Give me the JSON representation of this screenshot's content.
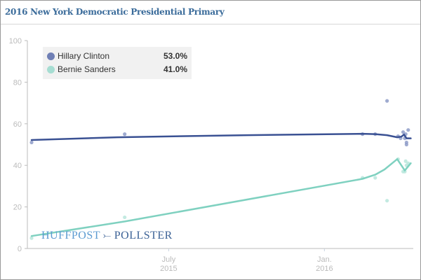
{
  "chart_data": {
    "type": "line",
    "title": "2016 New York Democratic Presidential Primary",
    "xlabel": "",
    "ylabel": "",
    "ylim": [
      0,
      100
    ],
    "yticks": [
      0,
      20,
      40,
      60,
      80,
      100
    ],
    "xlim": [
      "2015-01-15",
      "2016-04-15"
    ],
    "xticks": [
      {
        "date": "2015-07-01",
        "line1": "July",
        "line2": "2015"
      },
      {
        "date": "2016-01-01",
        "line1": "Jan.",
        "line2": "2016"
      }
    ],
    "grid": false,
    "legend_position": "top-left",
    "series": [
      {
        "name": "Hillary Clinton",
        "latest": "53.0%",
        "color": "#3a5193",
        "dot_color": "#8e9cc8",
        "trend": [
          {
            "date": "2015-01-20",
            "value": 52.2
          },
          {
            "date": "2015-05-01",
            "value": 53.5
          },
          {
            "date": "2015-10-01",
            "value": 54.5
          },
          {
            "date": "2016-02-15",
            "value": 55.2
          },
          {
            "date": "2016-03-01",
            "value": 55.0
          },
          {
            "date": "2016-03-15",
            "value": 54.5
          },
          {
            "date": "2016-03-27",
            "value": 53.5
          },
          {
            "date": "2016-04-01",
            "value": 53.8
          },
          {
            "date": "2016-04-04",
            "value": 54.8
          },
          {
            "date": "2016-04-07",
            "value": 53.0
          },
          {
            "date": "2016-04-12",
            "value": 53.0
          }
        ],
        "polls": [
          {
            "date": "2015-01-20",
            "value": 51
          },
          {
            "date": "2015-05-10",
            "value": 55
          },
          {
            "date": "2016-02-15",
            "value": 55
          },
          {
            "date": "2016-03-01",
            "value": 55
          },
          {
            "date": "2016-03-15",
            "value": 71
          },
          {
            "date": "2016-03-28",
            "value": 54
          },
          {
            "date": "2016-03-31",
            "value": 53
          },
          {
            "date": "2016-04-03",
            "value": 56
          },
          {
            "date": "2016-04-05",
            "value": 53
          },
          {
            "date": "2016-04-06",
            "value": 55
          },
          {
            "date": "2016-04-07",
            "value": 51
          },
          {
            "date": "2016-04-07",
            "value": 50
          },
          {
            "date": "2016-04-09",
            "value": 57
          }
        ]
      },
      {
        "name": "Bernie Sanders",
        "latest": "41.0%",
        "color": "#7fd1c0",
        "dot_color": "#b8e6dc",
        "trend": [
          {
            "date": "2015-01-20",
            "value": 6.0
          },
          {
            "date": "2015-05-10",
            "value": 13.0
          },
          {
            "date": "2016-02-15",
            "value": 33.5
          },
          {
            "date": "2016-03-01",
            "value": 35.5
          },
          {
            "date": "2016-03-12",
            "value": 38.0
          },
          {
            "date": "2016-03-27",
            "value": 43.0
          },
          {
            "date": "2016-04-05",
            "value": 37.5
          },
          {
            "date": "2016-04-12",
            "value": 41.0
          }
        ],
        "polls": [
          {
            "date": "2015-01-20",
            "value": 5
          },
          {
            "date": "2015-05-10",
            "value": 15
          },
          {
            "date": "2016-02-15",
            "value": 34
          },
          {
            "date": "2016-03-01",
            "value": 34
          },
          {
            "date": "2016-03-15",
            "value": 23
          },
          {
            "date": "2016-03-28",
            "value": 43
          },
          {
            "date": "2016-04-03",
            "value": 37
          },
          {
            "date": "2016-04-05",
            "value": 37
          },
          {
            "date": "2016-04-06",
            "value": 42
          },
          {
            "date": "2016-04-07",
            "value": 40
          },
          {
            "date": "2016-04-09",
            "value": 41
          }
        ]
      }
    ]
  },
  "branding": {
    "logo_left": "HUFFPOST",
    "logo_right": "POLLSTER"
  }
}
